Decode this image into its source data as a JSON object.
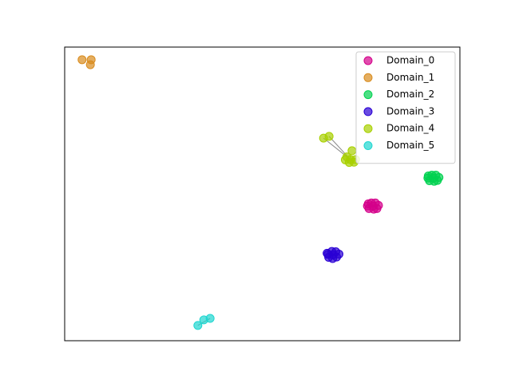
{
  "chart_data": {
    "type": "scatter",
    "xlim": [
      0,
      100
    ],
    "ylim": [
      0,
      100
    ],
    "legend": "upper right",
    "series": [
      {
        "name": "Domain_0",
        "color": "#d4008a",
        "x": [
          76.6,
          77.6,
          78.6,
          79.4,
          77.0,
          78.2,
          79.0,
          76.8,
          78.0
        ],
        "y": [
          45.9,
          46.9,
          46.9,
          46.1,
          45.0,
          44.8,
          45.0,
          46.6,
          45.9
        ]
      },
      {
        "name": "Domain_1",
        "color": "#d98c1e",
        "x": [
          4.4,
          6.7,
          6.5
        ],
        "y": [
          95.7,
          95.7,
          94.0
        ]
      },
      {
        "name": "Domain_2",
        "color": "#00d150",
        "x": [
          91.9,
          92.9,
          93.9,
          94.7,
          92.3,
          93.5,
          94.3,
          92.0,
          93.3
        ],
        "y": [
          55.4,
          56.4,
          56.4,
          55.6,
          54.5,
          54.3,
          54.6,
          56.1,
          55.4
        ]
      },
      {
        "name": "Domain_3",
        "color": "#2a00d4",
        "x": [
          66.6,
          67.6,
          68.6,
          69.4,
          66.8,
          67.8,
          68.8,
          66.4,
          67.9
        ],
        "y": [
          29.4,
          30.4,
          30.3,
          29.5,
          28.4,
          28.0,
          28.5,
          29.8,
          29.3
        ]
      },
      {
        "name": "Domain_4",
        "color": "#a8d000",
        "x": [
          72.3,
          65.5,
          66.9,
          72.7,
          71.0,
          73.6,
          71.4,
          73.2,
          72.0
        ],
        "y": [
          61.7,
          69.0,
          69.6,
          64.7,
          61.6,
          61.7,
          62.6,
          60.8,
          60.7
        ]
      },
      {
        "name": "Domain_5",
        "color": "#1ed6d0",
        "x": [
          33.7,
          35.2,
          36.8
        ],
        "y": [
          5.2,
          7.1,
          7.6
        ]
      }
    ]
  }
}
